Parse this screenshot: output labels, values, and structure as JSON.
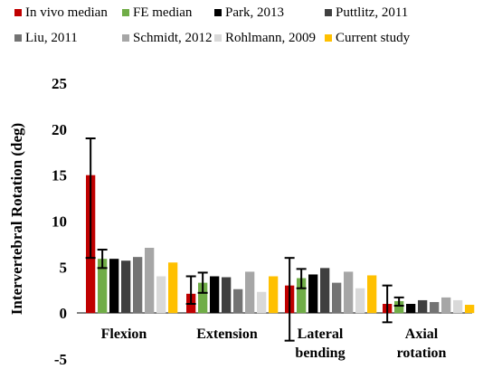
{
  "chart_data": {
    "type": "bar",
    "title": "",
    "xlabel": "",
    "ylabel": "Intervertebral Rotation (deg)",
    "ylim": [
      -5,
      25
    ],
    "yticks": [
      -5,
      0,
      5,
      10,
      15,
      20,
      25
    ],
    "grid": false,
    "legend_position": "top",
    "categories": [
      {
        "lines": [
          "Flexion"
        ]
      },
      {
        "lines": [
          "Extension"
        ]
      },
      {
        "lines": [
          "Lateral",
          "bending"
        ]
      },
      {
        "lines": [
          "Axial",
          "rotation"
        ]
      }
    ],
    "series": [
      {
        "name": "In vivo median",
        "color": "#c00000",
        "values": [
          15.0,
          2.1,
          3.0,
          1.0
        ],
        "error_low": [
          6.0,
          1.0,
          -3.0,
          -1.0
        ],
        "error_high": [
          19.0,
          4.0,
          6.0,
          3.0
        ]
      },
      {
        "name": "FE median",
        "color": "#70ad47",
        "values": [
          5.9,
          3.3,
          3.8,
          1.3
        ],
        "error_low": [
          4.9,
          2.2,
          2.7,
          0.8
        ],
        "error_high": [
          6.9,
          4.4,
          4.8,
          1.7
        ]
      },
      {
        "name": "Park, 2013",
        "color": "#000000",
        "values": [
          5.9,
          4.0,
          4.2,
          1.0
        ]
      },
      {
        "name": "Puttlitz, 2011",
        "color": "#404040",
        "values": [
          5.7,
          3.9,
          4.9,
          1.4
        ]
      },
      {
        "name": "Liu, 2011",
        "color": "#737373",
        "values": [
          6.1,
          2.6,
          3.3,
          1.2
        ]
      },
      {
        "name": "Schmidt, 2012",
        "color": "#a6a6a6",
        "values": [
          7.1,
          4.5,
          4.5,
          1.7
        ]
      },
      {
        "name": "Rohlmann, 2009",
        "color": "#d9d9d9",
        "values": [
          4.0,
          2.3,
          2.7,
          1.4
        ]
      },
      {
        "name": "Current study",
        "color": "#ffc000",
        "values": [
          5.5,
          4.0,
          4.1,
          0.9
        ]
      }
    ]
  }
}
